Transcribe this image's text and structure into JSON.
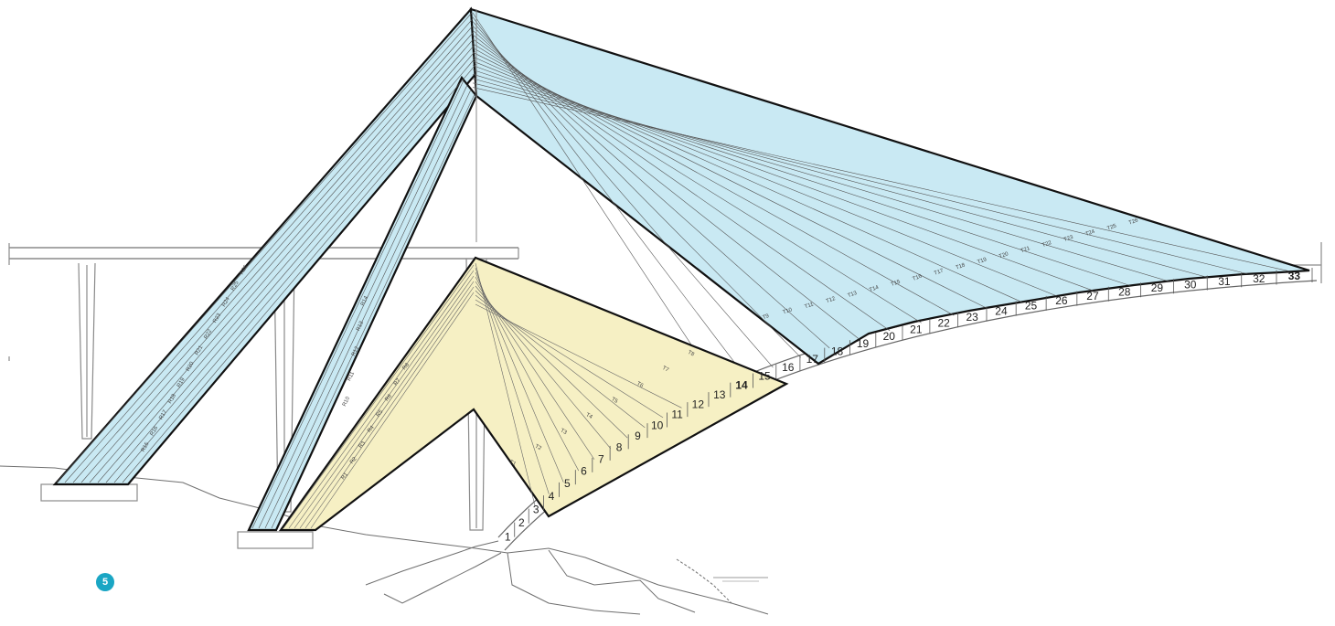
{
  "figure": {
    "number": "5"
  },
  "segments": {
    "stage1": [
      "1",
      "2",
      "3"
    ],
    "stage2": [
      "4",
      "5",
      "6",
      "7",
      "8",
      "9",
      "10",
      "11",
      "12",
      "13",
      "14"
    ],
    "stage3": [
      "15",
      "16",
      "17",
      "18",
      "19",
      "20",
      "21",
      "22",
      "23",
      "24",
      "25",
      "26",
      "27",
      "28",
      "29",
      "30",
      "31",
      "32",
      "33"
    ]
  },
  "cables": {
    "yellow_backstay": [
      "R1",
      "R2",
      "R3",
      "R4",
      "R5",
      "R6",
      "R7",
      "R8"
    ],
    "yellow_forestay": [
      "T1",
      "T2",
      "T3",
      "T4",
      "T5",
      "T6",
      "T7",
      "T8"
    ],
    "blue_inner_backstay": [
      "R10",
      "R11",
      "R12",
      "R13",
      "R14"
    ],
    "blue_outer_backstay": [
      "R15",
      "R16",
      "R17",
      "R18",
      "R19",
      "R20",
      "R21",
      "R22",
      "R23",
      "R24",
      "R25",
      "R26"
    ],
    "blue_forestay": [
      "T9",
      "T10",
      "T11",
      "T12",
      "T13",
      "T14",
      "T15",
      "T16",
      "T17",
      "T18",
      "T19",
      "T20",
      "T21",
      "T22",
      "T23",
      "T24",
      "T25",
      "T26"
    ]
  },
  "colors": {
    "blue_fill": "#c9e9f3",
    "yellow_fill": "#f6f0c4",
    "outline": "#111111",
    "structure": "#8a8a8a",
    "badge": "#1aa6c4"
  }
}
